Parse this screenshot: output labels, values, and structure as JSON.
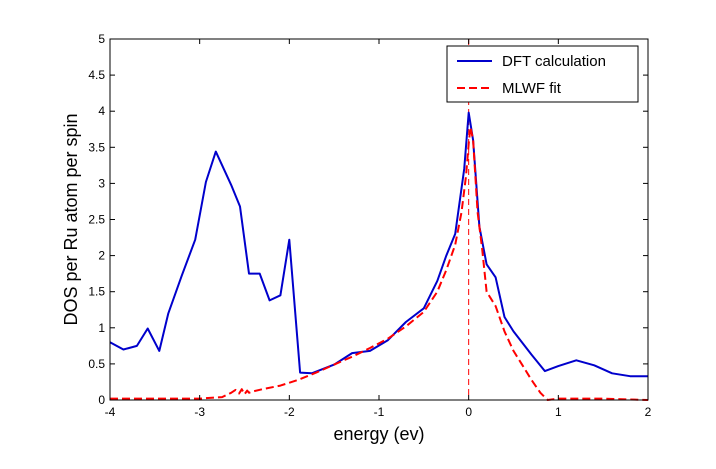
{
  "chart_data": {
    "type": "line",
    "title": "",
    "xlabel": "energy (ev)",
    "ylabel": "DOS per Ru atom per spin",
    "xlim": [
      -4,
      2
    ],
    "ylim": [
      0,
      5
    ],
    "xticks": [
      "-4",
      "-3",
      "-2",
      "-1",
      "0",
      "1",
      "2"
    ],
    "yticks": [
      "0",
      "0.5",
      "1",
      "1.5",
      "2",
      "2.5",
      "3",
      "3.5",
      "4",
      "4.5",
      "5"
    ],
    "grid": false,
    "legend_position": "top-right",
    "fermi_line_x": 0,
    "series": [
      {
        "name": "DFT calculation",
        "color": "#0000cc",
        "style": "solid",
        "x": [
          -4.0,
          -3.85,
          -3.7,
          -3.58,
          -3.45,
          -3.35,
          -3.2,
          -3.05,
          -2.93,
          -2.82,
          -2.65,
          -2.55,
          -2.45,
          -2.33,
          -2.22,
          -2.1,
          -2.0,
          -1.88,
          -1.75,
          -1.5,
          -1.3,
          -1.1,
          -0.9,
          -0.7,
          -0.5,
          -0.35,
          -0.25,
          -0.15,
          -0.05,
          0.0,
          0.05,
          0.12,
          0.2,
          0.3,
          0.4,
          0.5,
          0.7,
          0.85,
          1.0,
          1.2,
          1.4,
          1.6,
          1.8,
          2.0
        ],
        "values": [
          0.8,
          0.7,
          0.75,
          0.99,
          0.68,
          1.2,
          1.72,
          2.22,
          3.02,
          3.44,
          2.98,
          2.68,
          1.75,
          1.75,
          1.38,
          1.45,
          2.22,
          0.38,
          0.37,
          0.49,
          0.65,
          0.68,
          0.83,
          1.08,
          1.27,
          1.65,
          2.0,
          2.3,
          3.2,
          3.98,
          3.6,
          2.4,
          1.88,
          1.7,
          1.15,
          0.95,
          0.63,
          0.4,
          0.47,
          0.55,
          0.48,
          0.37,
          0.33,
          0.33
        ]
      },
      {
        "name": "MLWF fit",
        "color": "#ff0000",
        "style": "dashed",
        "x": [
          -4.0,
          -3.5,
          -3.0,
          -2.75,
          -2.65,
          -2.6,
          -2.56,
          -2.53,
          -2.5,
          -2.47,
          -2.45,
          -2.4,
          -2.3,
          -2.1,
          -1.9,
          -1.7,
          -1.5,
          -1.3,
          -1.1,
          -0.9,
          -0.7,
          -0.5,
          -0.35,
          -0.25,
          -0.15,
          -0.08,
          -0.03,
          0.0,
          0.02,
          0.05,
          0.1,
          0.15,
          0.2,
          0.3,
          0.4,
          0.5,
          0.6,
          0.7,
          0.8,
          0.88,
          1.0,
          1.5,
          2.0
        ],
        "values": [
          0.02,
          0.02,
          0.02,
          0.04,
          0.1,
          0.14,
          0.09,
          0.15,
          0.08,
          0.13,
          0.1,
          0.12,
          0.15,
          0.2,
          0.28,
          0.38,
          0.49,
          0.6,
          0.72,
          0.85,
          1.02,
          1.22,
          1.5,
          1.8,
          2.15,
          2.6,
          3.1,
          3.55,
          3.78,
          3.6,
          2.6,
          2.1,
          1.5,
          1.3,
          0.95,
          0.68,
          0.48,
          0.28,
          0.1,
          0.0,
          0.02,
          0.02,
          0.0
        ]
      }
    ]
  }
}
